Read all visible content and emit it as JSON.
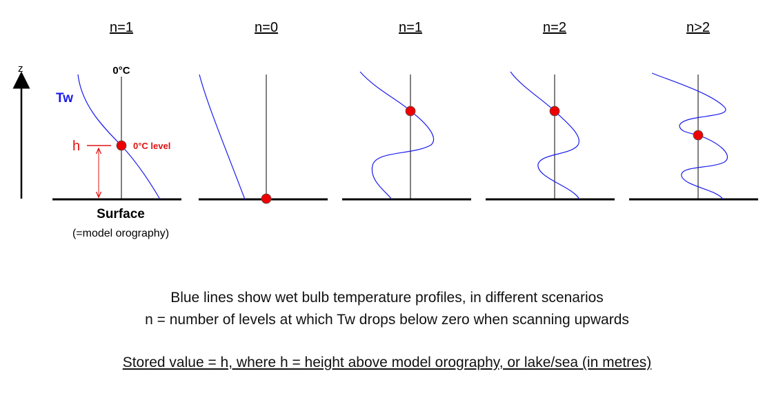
{
  "panels": [
    {
      "title": "n=1"
    },
    {
      "title": "n=0"
    },
    {
      "title": "n=1"
    },
    {
      "title": "n=2"
    },
    {
      "title": "n>2"
    }
  ],
  "labels": {
    "z_axis": "z",
    "tw": "Tw",
    "zero_c": "0°C",
    "h": "h",
    "zero_c_level": "0°C level",
    "surface": "Surface",
    "orography": "(=model orography)"
  },
  "captions": {
    "line1": "Blue lines show wet bulb temperature profiles, in different scenarios",
    "line2": "n = number of levels at which Tw drops below zero when scanning upwards",
    "line3": "Stored value = h, where h = height above model orography, or lake/sea (in metres)"
  },
  "colors": {
    "profile": "#1a1aee",
    "marker": "#ee0000",
    "annotation": "#e01010",
    "tw_label": "#1a1aee",
    "ink": "#000000"
  }
}
